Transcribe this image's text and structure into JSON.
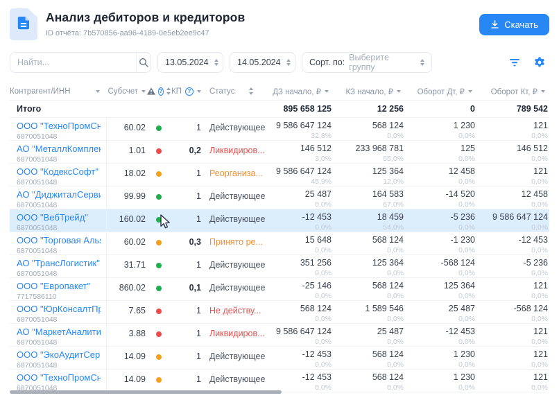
{
  "header": {
    "title": "Анализ дебиторов и кредиторов",
    "report_id": "ID отчёта: 7b570856-aa96-4189-0e5eb2ee9c47",
    "download_label": "Скачать"
  },
  "filters": {
    "search_placeholder": "Найти...",
    "date_from": "13.05.2024",
    "date_to": "14.05.2024",
    "sort_label": "Сорт. по:",
    "sort_placeholder": "Выберите группу"
  },
  "icons": {
    "question_glyph": "?"
  },
  "colors": {
    "accent_blue": "#2787F5",
    "green_dot": "#1FAF4E",
    "red_dot": "#EF4B4B",
    "orange_dot": "#F5A01F",
    "status_red": "#E5504E",
    "status_orange": "#EE9038",
    "highlight_row": "#DCEDFB"
  },
  "table": {
    "headers": {
      "counterparty": "Контрагент/ИНН",
      "subaccount": "Субсчет",
      "kp": "КП",
      "status": "Статус",
      "dz": "ДЗ начало, ₽",
      "kz": "КЗ начало, ₽",
      "dt": "Оборот Дт, ₽",
      "kt": "Оборот Кт, ₽"
    },
    "totals": {
      "label": "Итого",
      "dz": "895 658 125",
      "kz": "12 256",
      "dt": "0",
      "kt": "789 542"
    },
    "rows": [
      {
        "name": "ООО \"ТехноПромСнаб\"",
        "inn": "6870051048",
        "subaccount": "60.02",
        "dot": "green",
        "kp": "1",
        "kp_bold": false,
        "status": "Действующее",
        "status_color": "default",
        "dz": "9 586 647 124",
        "dz_pct": "32,8%",
        "kz": "568 124",
        "kz_pct": "0,0%",
        "dt": "1 230",
        "dt_pct": "0,0%",
        "kt": "121",
        "kt_pct": "0,0%",
        "highlighted": false
      },
      {
        "name": "АО \"МеталлКомплект\"",
        "inn": "6870051048",
        "subaccount": "1.01",
        "dot": "red",
        "kp": "0,2",
        "kp_bold": true,
        "status": "Ликвидиров...",
        "status_color": "red",
        "dz": "146 512",
        "dz_pct": "3,0%",
        "kz": "233 968 781",
        "kz_pct": "55,0%",
        "dt": "125",
        "dt_pct": "0,0%",
        "kt": "146 512",
        "kt_pct": "0,0%",
        "highlighted": false
      },
      {
        "name": "ООО \"КодексСофт\"",
        "inn": "6870051048",
        "subaccount": "18.02",
        "dot": "orange",
        "kp": "1",
        "kp_bold": false,
        "status": "Реорганиза...",
        "status_color": "orange",
        "dz": "9 586 647 124",
        "dz_pct": "45,9%",
        "kz": "125 364",
        "kz_pct": "12,0%",
        "dt": "12 458",
        "dt_pct": "0,0%",
        "kt": "121",
        "kt_pct": "0,0%",
        "highlighted": false
      },
      {
        "name": "АО \"ДиджиталСервис\"",
        "inn": "6870051048",
        "subaccount": "99.99",
        "dot": "green",
        "kp": "1",
        "kp_bold": false,
        "status": "Действующее",
        "status_color": "default",
        "dz": "25 487",
        "dz_pct": "0,0%",
        "kz": "164 583",
        "kz_pct": "67,0%",
        "dt": "-14 520",
        "dt_pct": "0,0%",
        "kt": "12 458",
        "kt_pct": "0,0%",
        "highlighted": false
      },
      {
        "name": "ООО \"ВебТрейд\"",
        "inn": "6870051048",
        "subaccount": "160.02",
        "dot": "green",
        "kp": "1",
        "kp_bold": false,
        "status": "Действующее",
        "status_color": "default",
        "dz": "-12 453",
        "dz_pct": "0,0%",
        "kz": "18 459",
        "kz_pct": "54,0%",
        "dt": "-5 236",
        "dt_pct": "0,0%",
        "kt": "9 586 647 124",
        "kt_pct": "0,0%",
        "highlighted": true
      },
      {
        "name": "ООО \"Торговая Альянс Г...",
        "inn": "6870051048",
        "subaccount": "60.02",
        "dot": "orange",
        "kp": "0,3",
        "kp_bold": true,
        "status": "Принято ре...",
        "status_color": "orange",
        "dz": "15 648",
        "dz_pct": "0,0%",
        "kz": "568 124",
        "kz_pct": "0,0%",
        "dt": "-1 230",
        "dt_pct": "0,0%",
        "kt": "-12 453",
        "kt_pct": "0,0%",
        "highlighted": false
      },
      {
        "name": "АО \"ТрансЛогистик\"",
        "inn": "6870051048",
        "subaccount": "31.71",
        "dot": "green",
        "kp": "1",
        "kp_bold": false,
        "status": "Действующее",
        "status_color": "default",
        "dz": "351 256",
        "dz_pct": "0,0%",
        "kz": "125 364",
        "kz_pct": "0,0%",
        "dt": "-568 124",
        "dt_pct": "0,0%",
        "kt": "-5 236",
        "kt_pct": "0,0%",
        "highlighted": false
      },
      {
        "name": "ООО \"Европакет\"",
        "inn": "7717586110",
        "subaccount": "860.02",
        "dot": "green",
        "kp": "0,1",
        "kp_bold": true,
        "status": "Действующее",
        "status_color": "default",
        "dz": "-25 146",
        "dz_pct": "0,0%",
        "kz": "568 124",
        "kz_pct": "0,0%",
        "dt": "125 364",
        "dt_pct": "0,0%",
        "kt": "121",
        "kt_pct": "0,0%",
        "highlighted": false
      },
      {
        "name": "ООО \"ЮрКонсалтПрофи\"",
        "inn": "6870051048",
        "subaccount": "7.65",
        "dot": "red",
        "kp": "1",
        "kp_bold": false,
        "status": "Не действу...",
        "status_color": "red",
        "dz": "568 124",
        "dz_pct": "0,0%",
        "kz": "1 589 546",
        "kz_pct": "0,0%",
        "dt": "25 487",
        "dt_pct": "0,0%",
        "kt": "-568 124",
        "kt_pct": "0,0%",
        "highlighted": false
      },
      {
        "name": "АО \"МаркетАналитика\"",
        "inn": "6870051048",
        "subaccount": "3.88",
        "dot": "red",
        "kp": "1",
        "kp_bold": false,
        "status": "Ликвидиров...",
        "status_color": "red",
        "dz": "9 586 647 124",
        "dz_pct": "0,0%",
        "kz": "25 487",
        "kz_pct": "0,0%",
        "dt": "-12 453",
        "dt_pct": "0,0%",
        "kt": "121",
        "kt_pct": "0,0%",
        "highlighted": false
      },
      {
        "name": "ООО \"ЭкоАудитСервис\"",
        "inn": "6870051048",
        "subaccount": "14.09",
        "dot": "orange",
        "kp": "1",
        "kp_bold": false,
        "status": "Действующее",
        "status_color": "default",
        "dz": "-12 453",
        "dz_pct": "0,0%",
        "kz": "568 124",
        "kz_pct": "0,0%",
        "dt": "1 230",
        "dt_pct": "0,0%",
        "kt": "121",
        "kt_pct": "0,0%",
        "highlighted": false
      },
      {
        "name": "ООО \"ТехноПромСнаб\"",
        "inn": "6870051048",
        "subaccount": "14.09",
        "dot": "orange",
        "kp": "1",
        "kp_bold": false,
        "status": "Действующее",
        "status_color": "default",
        "dz": "-12 453",
        "dz_pct": "0,0%",
        "kz": "568 124",
        "kz_pct": "0,0%",
        "dt": "1 230",
        "dt_pct": "0,0%",
        "kt": "121",
        "kt_pct": "0,0%",
        "highlighted": false
      }
    ]
  }
}
